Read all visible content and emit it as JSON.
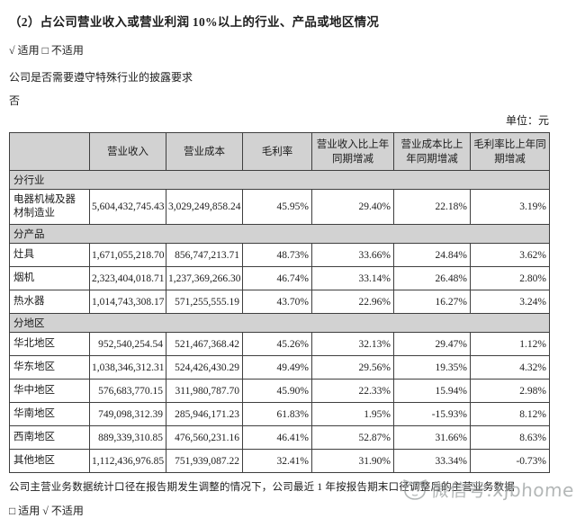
{
  "page": {
    "title": "（2）占公司营业收入或营业利润 10%以上的行业、产品或地区情况",
    "applicable_line": "√ 适用 □ 不适用",
    "special_industry_question": "公司是否需要遵守特殊行业的披露要求",
    "special_industry_answer": "否",
    "unit_label": "单位：元"
  },
  "table": {
    "columns": [
      "",
      "营业收入",
      "营业成本",
      "毛利率",
      "营业收入比上年同期增减",
      "营业成本比上年同期增减",
      "毛利率比上年同期增减"
    ],
    "sections": [
      {
        "label": "分行业",
        "rows": [
          [
            "电器机械及器材制造业",
            "5,604,432,745.43",
            "3,029,249,858.24",
            "45.95%",
            "29.40%",
            "22.18%",
            "3.19%"
          ]
        ]
      },
      {
        "label": "分产品",
        "rows": [
          [
            "灶具",
            "1,671,055,218.70",
            "856,747,213.71",
            "48.73%",
            "33.66%",
            "24.84%",
            "3.62%"
          ],
          [
            "烟机",
            "2,323,404,018.71",
            "1,237,369,266.30",
            "46.74%",
            "33.14%",
            "26.48%",
            "2.80%"
          ],
          [
            "热水器",
            "1,014,743,308.17",
            "571,255,555.19",
            "43.70%",
            "22.96%",
            "16.27%",
            "3.24%"
          ]
        ]
      },
      {
        "label": "分地区",
        "rows": [
          [
            "华北地区",
            "952,540,254.54",
            "521,467,368.42",
            "45.26%",
            "32.13%",
            "29.47%",
            "1.12%"
          ],
          [
            "华东地区",
            "1,038,346,312.31",
            "524,426,430.29",
            "49.49%",
            "29.56%",
            "19.35%",
            "4.32%"
          ],
          [
            "华中地区",
            "576,683,770.15",
            "311,980,787.70",
            "45.90%",
            "22.33%",
            "15.94%",
            "2.98%"
          ],
          [
            "华南地区",
            "749,098,312.39",
            "285,946,171.23",
            "61.83%",
            "1.95%",
            "-15.93%",
            "8.12%"
          ],
          [
            "西南地区",
            "889,339,310.85",
            "476,560,231.16",
            "46.41%",
            "52.87%",
            "31.66%",
            "8.63%"
          ],
          [
            "其他地区",
            "1,112,436,976.85",
            "751,939,087.22",
            "32.41%",
            "31.90%",
            "33.34%",
            "-0.73%"
          ]
        ]
      }
    ]
  },
  "footer": {
    "note": "公司主营业务数据统计口径在报告期发生调整的情况下，公司最近 1 年按报告期末口径调整后的主营业务数据",
    "applicable_line": "□ 适用 √ 不适用"
  },
  "watermark": {
    "text": "微信号:xjbhome",
    "logo": "cat-face-logo"
  },
  "colors": {
    "header_bg": "#d2d2d2",
    "border": "#3f3f3f",
    "text": "#1c1c1c",
    "watermark": "#9a9f9f"
  }
}
